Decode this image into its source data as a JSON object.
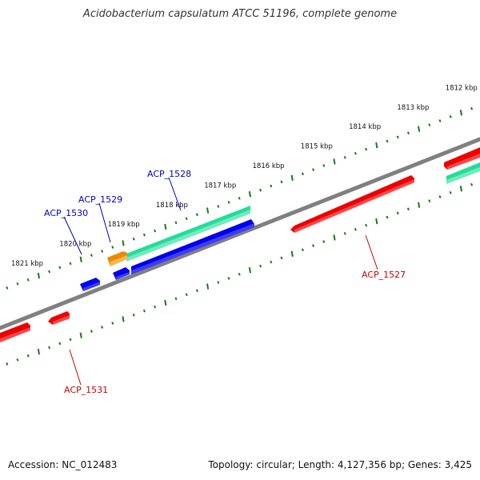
{
  "title": "Acidobacterium capsulatum ATCC 51196, complete genome",
  "footer": {
    "accession": "Accession: NC_012483",
    "summary": "Topology: circular; Length: 4,127,356 bp; Genes: 3,425"
  },
  "ruler": {
    "ticks": [
      {
        "label": "1812 kbp",
        "kbp": 1812
      },
      {
        "label": "1813 kbp",
        "kbp": 1813
      },
      {
        "label": "1814 kbp",
        "kbp": 1814
      },
      {
        "label": "1815 kbp",
        "kbp": 1815
      },
      {
        "label": "1816 kbp",
        "kbp": 1816
      },
      {
        "label": "1817 kbp",
        "kbp": 1817
      },
      {
        "label": "1818 kbp",
        "kbp": 1818
      },
      {
        "label": "1819 kbp",
        "kbp": 1819
      },
      {
        "label": "1820 kbp",
        "kbp": 1820
      },
      {
        "label": "1821 kbp",
        "kbp": 1821
      }
    ]
  },
  "gene_labels": [
    {
      "label": "ACP_1528",
      "color": "#0000cc"
    },
    {
      "label": "ACP_1529",
      "color": "#0000cc"
    },
    {
      "label": "ACP_1530",
      "color": "#0000cc"
    },
    {
      "label": "ACP_1527",
      "color": "#cc0000"
    },
    {
      "label": "ACP_1531",
      "color": "#cc0000"
    }
  ],
  "colors": {
    "backbone": "#808080",
    "ruler": "#1a7a1a",
    "forward_gene": "#0000ee",
    "reverse_gene": "#ee0000",
    "rna_gene": "#22dd99",
    "other_gene": "#ee8800"
  }
}
